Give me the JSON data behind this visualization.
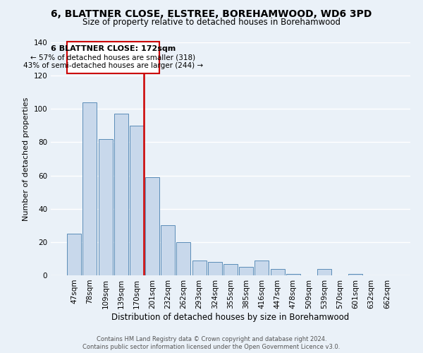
{
  "title": "6, BLATTNER CLOSE, ELSTREE, BOREHAMWOOD, WD6 3PD",
  "subtitle": "Size of property relative to detached houses in Borehamwood",
  "xlabel": "Distribution of detached houses by size in Borehamwood",
  "ylabel": "Number of detached properties",
  "bar_labels": [
    "47sqm",
    "78sqm",
    "109sqm",
    "139sqm",
    "170sqm",
    "201sqm",
    "232sqm",
    "262sqm",
    "293sqm",
    "324sqm",
    "355sqm",
    "385sqm",
    "416sqm",
    "447sqm",
    "478sqm",
    "509sqm",
    "539sqm",
    "570sqm",
    "601sqm",
    "632sqm",
    "662sqm"
  ],
  "bar_values": [
    25,
    104,
    82,
    97,
    90,
    59,
    30,
    20,
    9,
    8,
    7,
    5,
    9,
    4,
    1,
    0,
    4,
    0,
    1,
    0,
    0
  ],
  "bar_color": "#c8d8eb",
  "bar_edge_color": "#5b8db8",
  "vline_index": 4,
  "vline_color": "#cc0000",
  "annotation_title": "6 BLATTNER CLOSE: 172sqm",
  "annotation_line1": "← 57% of detached houses are smaller (318)",
  "annotation_line2": "43% of semi-detached houses are larger (244) →",
  "annotation_border_color": "#cc0000",
  "ylim": [
    0,
    140
  ],
  "yticks": [
    0,
    20,
    40,
    60,
    80,
    100,
    120,
    140
  ],
  "footer1": "Contains HM Land Registry data © Crown copyright and database right 2024.",
  "footer2": "Contains public sector information licensed under the Open Government Licence v3.0.",
  "bg_color": "#eaf1f8",
  "plot_bg_color": "#eaf1f8",
  "title_fontsize": 10,
  "subtitle_fontsize": 8.5,
  "xlabel_fontsize": 8.5,
  "ylabel_fontsize": 8.0,
  "tick_fontsize": 7.5,
  "footer_fontsize": 6.0
}
